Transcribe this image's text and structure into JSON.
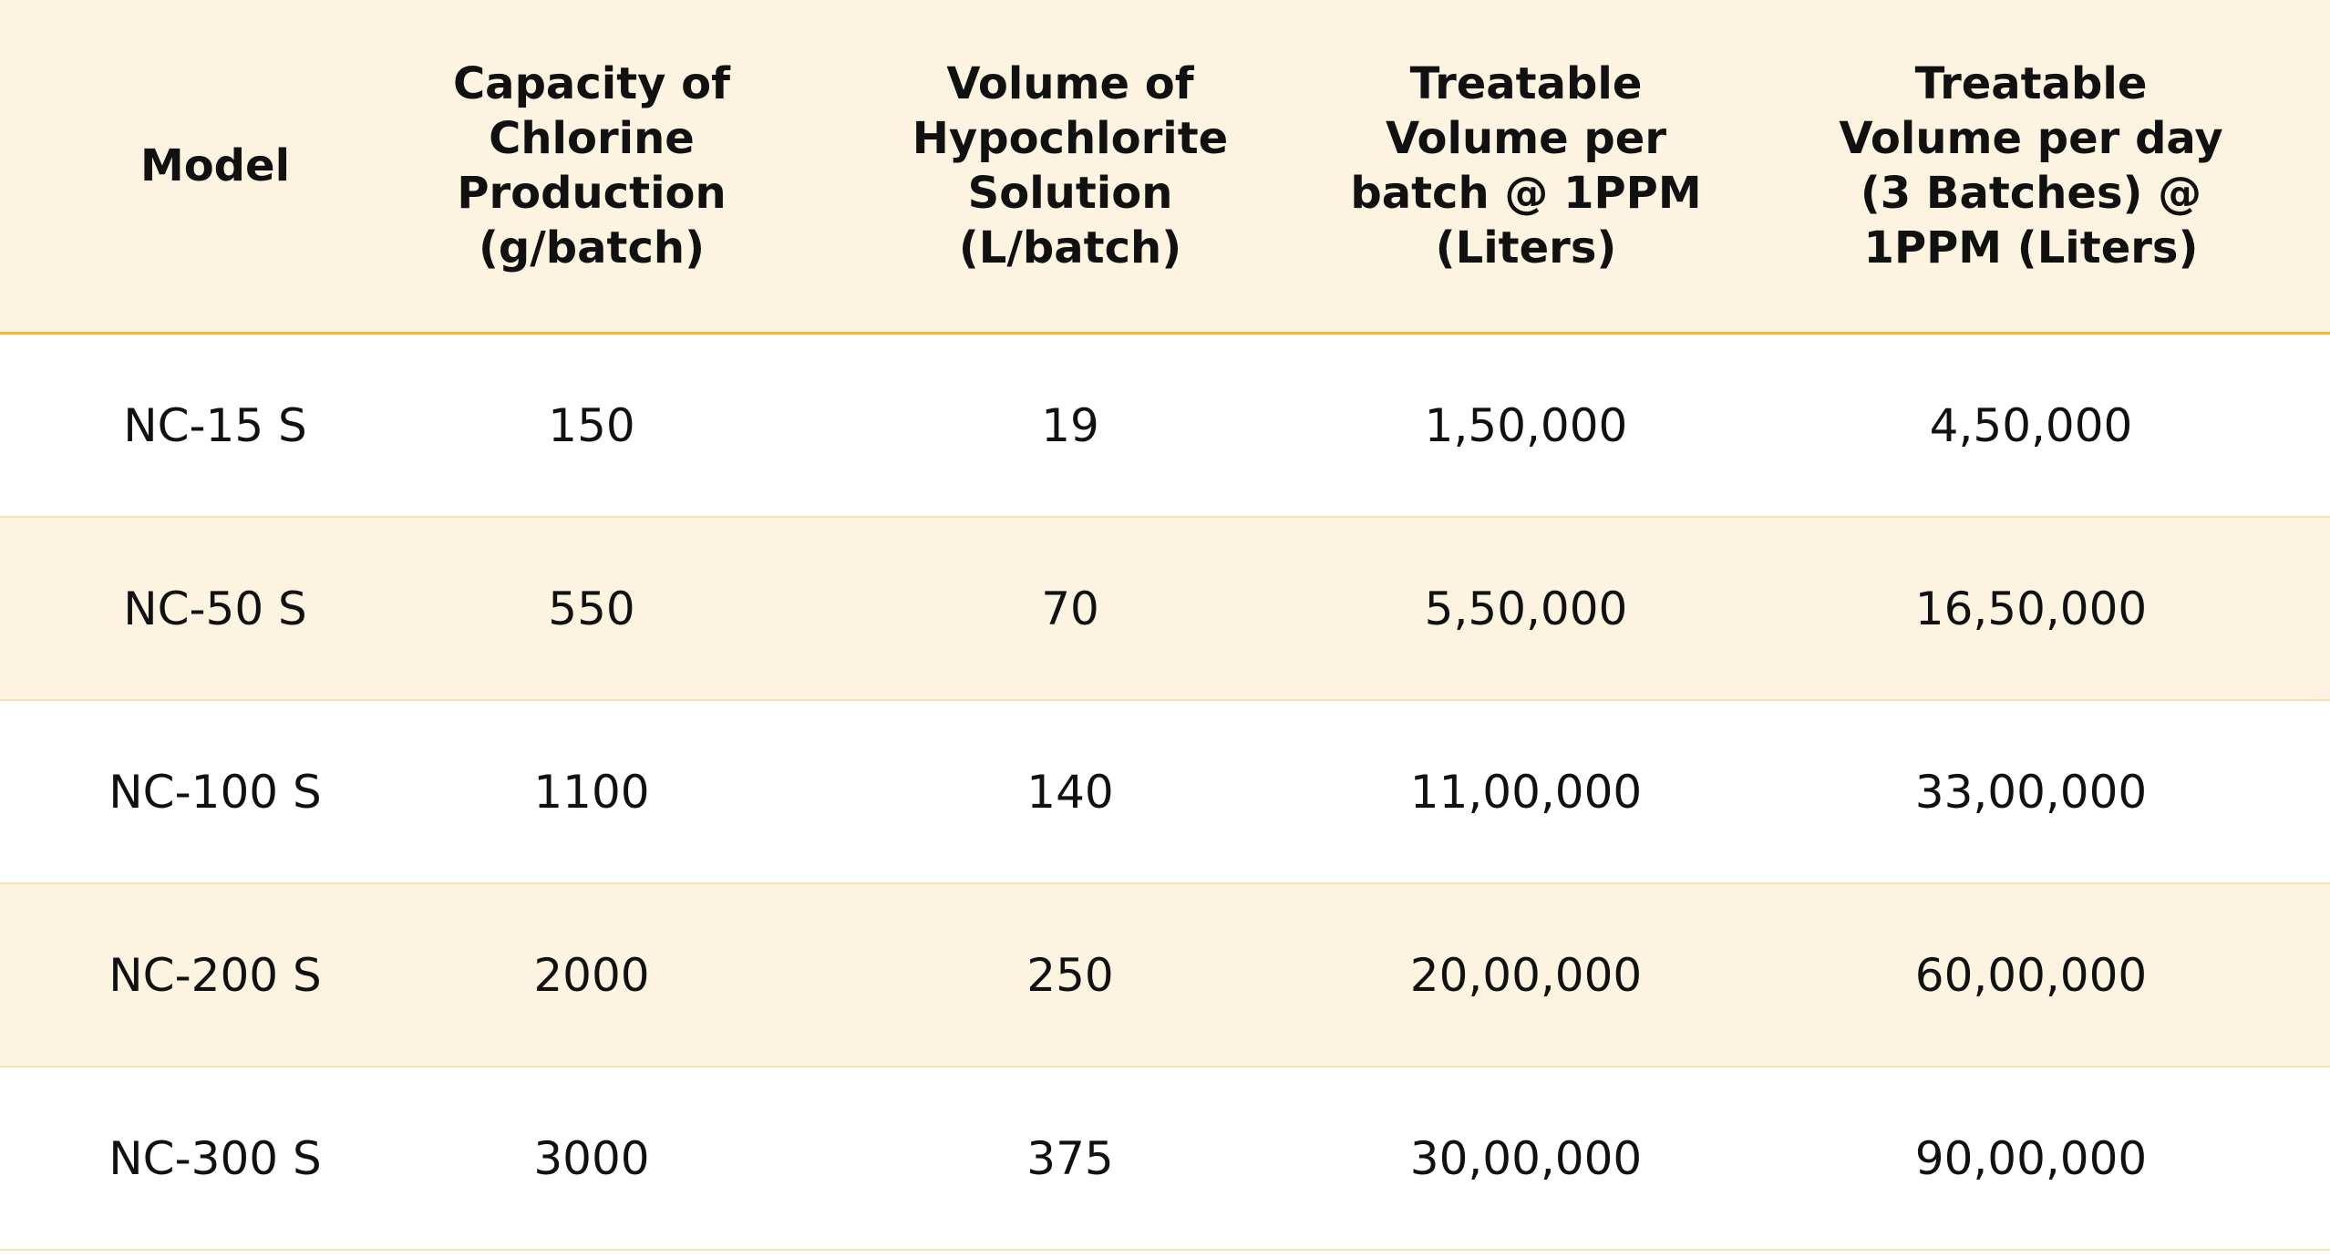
{
  "table": {
    "columns": [
      "Model",
      "Capacity of Chlorine Production (g/batch)",
      "Volume of Hypochlorite Solution (L/batch)",
      "Treatable Volume per batch @ 1PPM (Liters)",
      "Treatable Volume per day (3 Batches) @ 1PPM (Liters)"
    ],
    "rows": [
      [
        "NC-15 S",
        "150",
        "19",
        "1,50,000",
        "4,50,000"
      ],
      [
        "NC-50 S",
        "550",
        "70",
        "5,50,000",
        "16,50,000"
      ],
      [
        "NC-100 S",
        "1100",
        "140",
        "11,00,000",
        "33,00,000"
      ],
      [
        "NC-200 S",
        "2000",
        "250",
        "20,00,000",
        "60,00,000"
      ],
      [
        "NC-300 S",
        "3000",
        "375",
        "30,00,000",
        "90,00,000"
      ]
    ]
  }
}
